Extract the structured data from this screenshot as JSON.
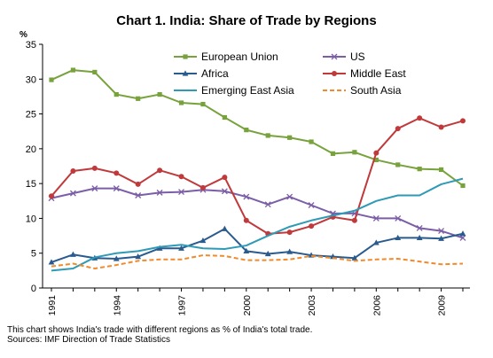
{
  "chart_data": {
    "type": "line",
    "title": "Chart 1. India: Share of Trade by Regions",
    "ylabel": "%",
    "xlabel": "",
    "ylim": [
      0,
      35
    ],
    "yticks": [
      0,
      5,
      10,
      15,
      20,
      25,
      30,
      35
    ],
    "xlim": [
      1991,
      2010
    ],
    "xticks": [
      1991,
      1994,
      1997,
      2000,
      2003,
      2006,
      2009
    ],
    "grid": false,
    "legend": "top-inside, two columns",
    "x": [
      1991,
      1992,
      1993,
      1994,
      1995,
      1996,
      1997,
      1998,
      1999,
      2000,
      2001,
      2002,
      2003,
      2004,
      2005,
      2006,
      2007,
      2008,
      2009,
      2010
    ],
    "series": [
      {
        "name": "European Union",
        "color": "#77a23c",
        "marker": "square",
        "style": "solid",
        "values": [
          29.9,
          31.3,
          31.0,
          27.8,
          27.2,
          27.8,
          26.6,
          26.4,
          24.5,
          22.7,
          21.9,
          21.6,
          21.0,
          19.3,
          19.5,
          18.4,
          17.7,
          17.1,
          17.0,
          14.7
        ]
      },
      {
        "name": "US",
        "color": "#7b5ea7",
        "marker": "x",
        "style": "solid",
        "values": [
          12.9,
          13.6,
          14.3,
          14.3,
          13.3,
          13.7,
          13.8,
          14.1,
          13.9,
          13.1,
          12.0,
          13.1,
          11.9,
          10.7,
          10.7,
          10.0,
          10.0,
          8.6,
          8.2,
          7.2
        ]
      },
      {
        "name": "Africa",
        "color": "#2a5b8f",
        "marker": "triangle",
        "style": "solid",
        "values": [
          3.7,
          4.8,
          4.3,
          4.2,
          4.5,
          5.7,
          5.7,
          6.8,
          8.5,
          5.3,
          4.9,
          5.2,
          4.7,
          4.5,
          4.3,
          6.5,
          7.2,
          7.2,
          7.1,
          7.8
        ]
      },
      {
        "name": "Middle East",
        "color": "#c0393b",
        "marker": "circle",
        "style": "solid",
        "values": [
          13.2,
          16.8,
          17.2,
          16.5,
          14.9,
          16.9,
          16.0,
          14.4,
          15.9,
          9.7,
          7.8,
          8.0,
          8.9,
          10.2,
          9.7,
          19.4,
          22.9,
          24.4,
          23.1,
          24.0
        ]
      },
      {
        "name": "Emerging East Asia",
        "color": "#2e9ab5",
        "marker": "none",
        "style": "solid",
        "values": [
          2.5,
          2.8,
          4.4,
          5.0,
          5.3,
          5.9,
          6.2,
          5.7,
          5.6,
          6.1,
          7.5,
          8.8,
          9.7,
          10.4,
          11.1,
          12.5,
          13.3,
          13.3,
          14.9,
          15.7
        ]
      },
      {
        "name": "South Asia",
        "color": "#f08a2a",
        "marker": "none",
        "style": "dashed",
        "values": [
          3.1,
          3.5,
          2.8,
          3.3,
          3.9,
          4.1,
          4.1,
          4.7,
          4.6,
          4.0,
          4.0,
          4.1,
          4.6,
          4.3,
          3.9,
          4.1,
          4.2,
          3.8,
          3.4,
          3.5
        ]
      }
    ],
    "notes": [
      "This chart shows India's trade with different regions as % of India's total trade.",
      "Sources: IMF Direction of Trade Statistics"
    ]
  }
}
